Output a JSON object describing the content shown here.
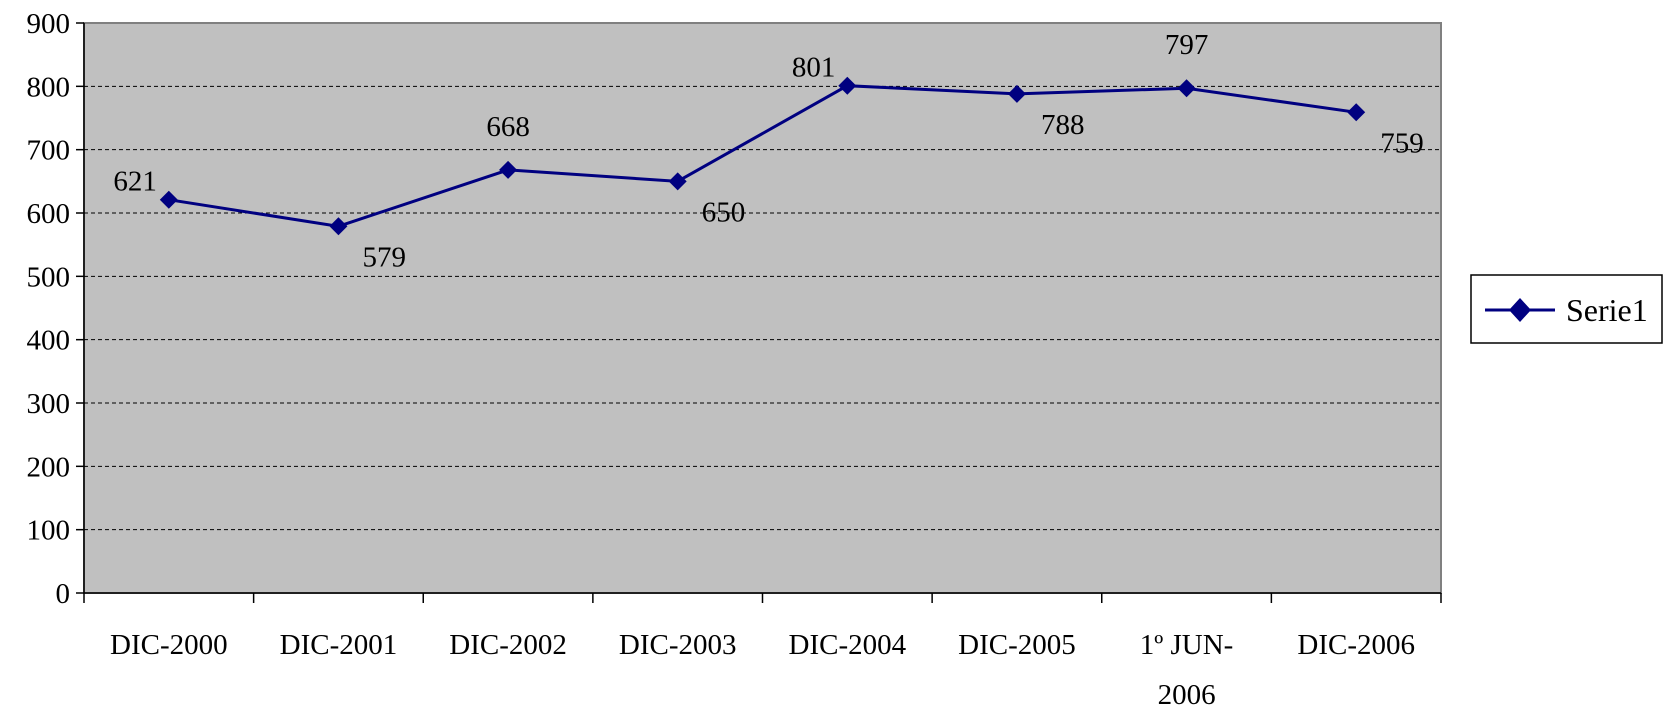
{
  "chart_data": {
    "type": "line",
    "categories": [
      [
        "DIC-2000"
      ],
      [
        "DIC-2001"
      ],
      [
        "DIC-2002"
      ],
      [
        "DIC-2003"
      ],
      [
        "DIC-2004"
      ],
      [
        "DIC-2005"
      ],
      [
        "1º JUN-",
        "2006"
      ],
      [
        "DIC-2006"
      ]
    ],
    "series": [
      {
        "name": "Serie1",
        "values": [
          621,
          579,
          668,
          650,
          801,
          788,
          797,
          759
        ],
        "color": "#000080"
      }
    ],
    "ylim": [
      0,
      900
    ],
    "yticks": [
      0,
      100,
      200,
      300,
      400,
      500,
      600,
      700,
      800,
      900
    ],
    "grid": true,
    "legend_position": "right",
    "plot_background": "#c0c0c0"
  }
}
